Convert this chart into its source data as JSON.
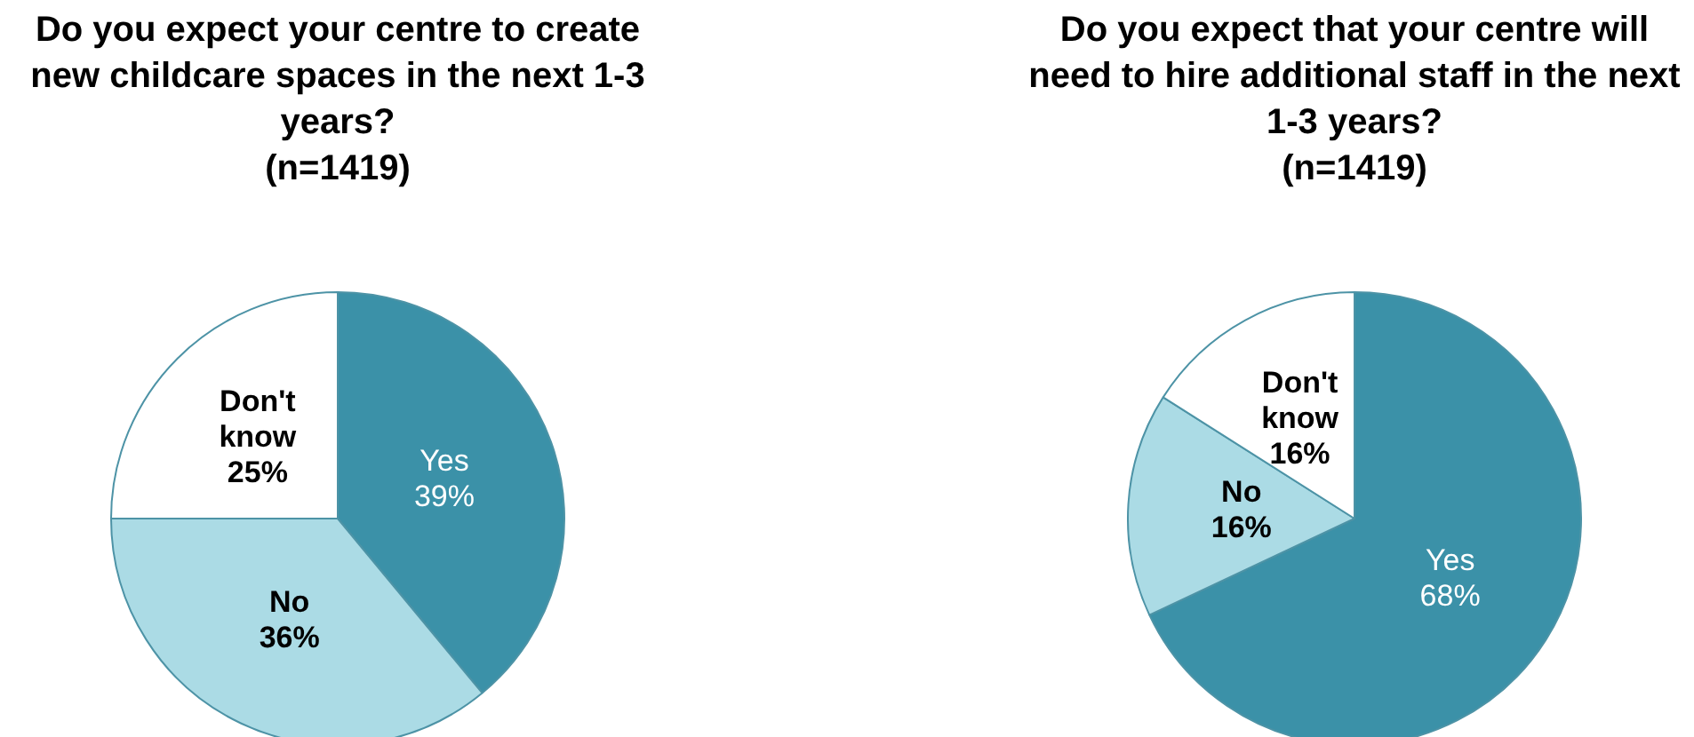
{
  "chart_data": [
    {
      "type": "pie",
      "title": "Do you expect your centre to create new childcare spaces in the next 1-3 years?",
      "subtitle": "(n=1419)",
      "categories": [
        "Yes",
        "No",
        "Don't know"
      ],
      "values": [
        39,
        36,
        25
      ],
      "colors": [
        "#3b91a8",
        "#abdbe5",
        "#ffffff"
      ],
      "value_labels": [
        "39%",
        "36%",
        "25%"
      ],
      "legend": false
    },
    {
      "type": "pie",
      "title": "Do you expect that your centre will need to hire additional staff in the next 1-3 years?",
      "subtitle": "(n=1419)",
      "categories": [
        "Yes",
        "No",
        "Don't know"
      ],
      "values": [
        68,
        16,
        16
      ],
      "colors": [
        "#3b91a8",
        "#abdbe5",
        "#ffffff"
      ],
      "value_labels": [
        "68%",
        "16%",
        "16%"
      ],
      "legend": false
    }
  ]
}
